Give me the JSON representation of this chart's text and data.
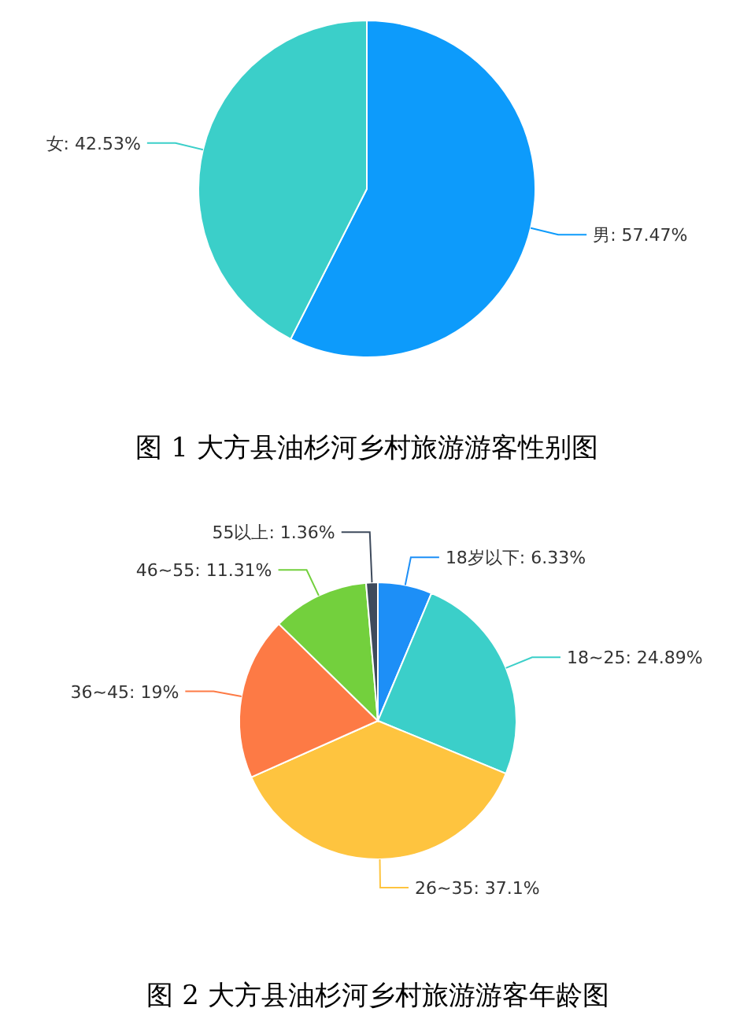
{
  "chart_data": [
    {
      "type": "pie",
      "title": "图 1 大方县油杉河乡村旅游游客性别图",
      "categories": [
        "男",
        "女"
      ],
      "values": [
        57.47,
        42.53
      ],
      "value_labels": [
        "57.47%",
        "42.53%"
      ],
      "colors": [
        "#0d9bfb",
        "#3bcfc9"
      ]
    },
    {
      "type": "pie",
      "title": "图 2 大方县油杉河乡村旅游游客年龄图",
      "categories": [
        "18岁以下",
        "18~25",
        "26~35",
        "36~45",
        "46~55",
        "55以上"
      ],
      "values": [
        6.33,
        24.89,
        37.1,
        19,
        11.31,
        1.36
      ],
      "value_labels": [
        "6.33%",
        "24.89%",
        "37.1%",
        "19%",
        "11.31%",
        "1.36%"
      ],
      "colors": [
        "#1d8ff7",
        "#3bcfc9",
        "#fec43f",
        "#fd7a45",
        "#73d03d",
        "#3e4a5c"
      ]
    }
  ]
}
